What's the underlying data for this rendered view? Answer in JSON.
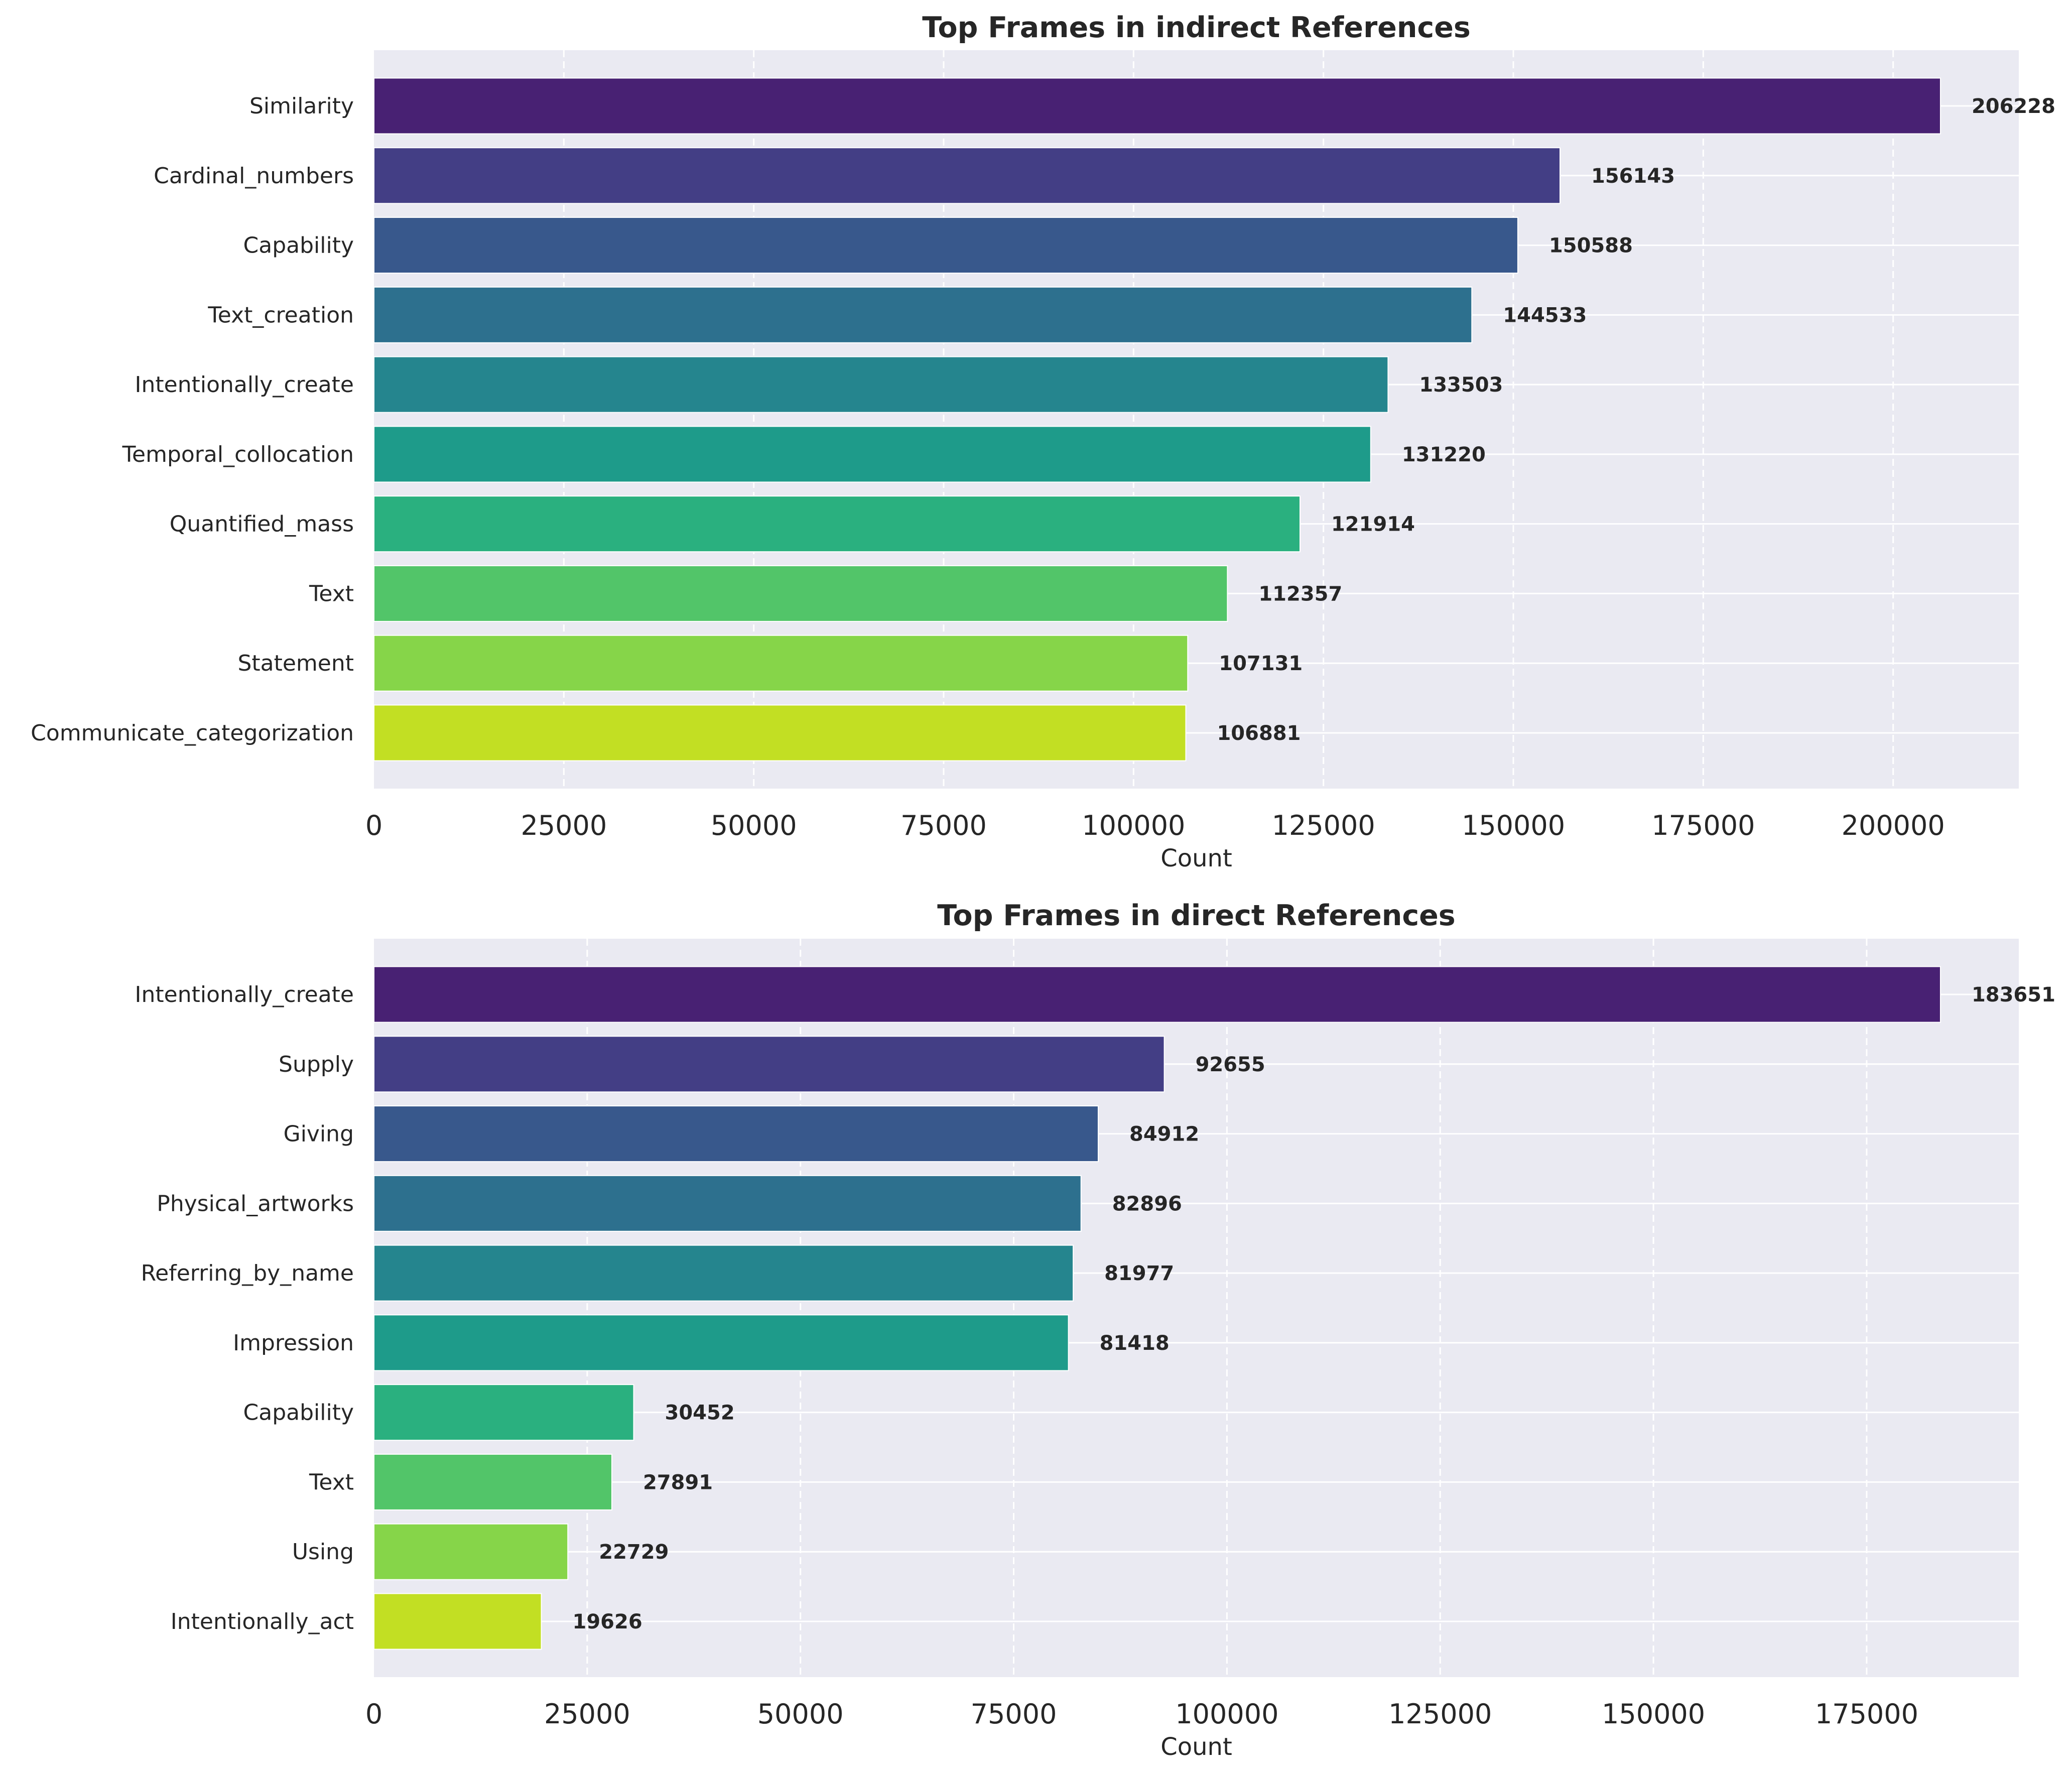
{
  "chart_data": [
    {
      "type": "bar",
      "orientation": "horizontal",
      "title": "Top Frames in indirect References",
      "xlabel": "Count",
      "ylabel": "",
      "xlim": [
        0,
        216540
      ],
      "xticks": [
        "0",
        "25000",
        "50000",
        "75000",
        "100000",
        "125000",
        "150000",
        "175000",
        "200000"
      ],
      "grid": true,
      "categories": [
        "Similarity",
        "Cardinal_numbers",
        "Capability",
        "Text_creation",
        "Intentionally_create",
        "Temporal_collocation",
        "Quantified_mass",
        "Text",
        "Statement",
        "Communicate_categorization"
      ],
      "values": [
        206228,
        156143,
        150588,
        144533,
        133503,
        131220,
        121914,
        112357,
        107131,
        106881
      ],
      "value_labels": [
        "206228",
        "156143",
        "150588",
        "144533",
        "133503",
        "131220",
        "121914",
        "112357",
        "107131",
        "106881"
      ],
      "colors": [
        "#482173",
        "#433e85",
        "#38588c",
        "#2d708e",
        "#25858e",
        "#1e9b8a",
        "#2ab07f",
        "#52c569",
        "#86d549",
        "#c2df23"
      ]
    },
    {
      "type": "bar",
      "orientation": "horizontal",
      "title": "Top Frames in direct References",
      "xlabel": "Count",
      "ylabel": "",
      "xlim": [
        0,
        192834
      ],
      "xticks": [
        "0",
        "25000",
        "50000",
        "75000",
        "100000",
        "125000",
        "150000",
        "175000"
      ],
      "grid": true,
      "categories": [
        "Intentionally_create",
        "Supply",
        "Giving",
        "Physical_artworks",
        "Referring_by_name",
        "Impression",
        "Capability",
        "Text",
        "Using",
        "Intentionally_act"
      ],
      "values": [
        183651,
        92655,
        84912,
        82896,
        81977,
        81418,
        30452,
        27891,
        22729,
        19626
      ],
      "value_labels": [
        "183651",
        "92655",
        "84912",
        "82896",
        "81977",
        "81418",
        "30452",
        "27891",
        "22729",
        "19626"
      ],
      "colors": [
        "#482173",
        "#433e85",
        "#38588c",
        "#2d708e",
        "#25858e",
        "#1e9b8a",
        "#2ab07f",
        "#52c569",
        "#86d549",
        "#c2df23"
      ]
    }
  ]
}
